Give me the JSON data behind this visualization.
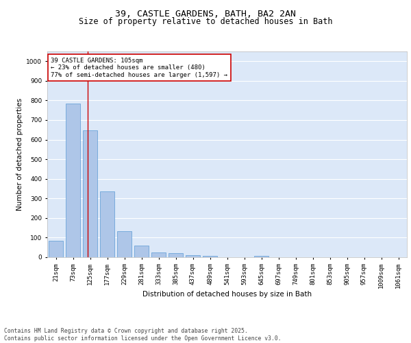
{
  "title1": "39, CASTLE GARDENS, BATH, BA2 2AN",
  "title2": "Size of property relative to detached houses in Bath",
  "xlabel": "Distribution of detached houses by size in Bath",
  "ylabel": "Number of detached properties",
  "categories": [
    "21sqm",
    "73sqm",
    "125sqm",
    "177sqm",
    "229sqm",
    "281sqm",
    "333sqm",
    "385sqm",
    "437sqm",
    "489sqm",
    "541sqm",
    "593sqm",
    "645sqm",
    "697sqm",
    "749sqm",
    "801sqm",
    "853sqm",
    "905sqm",
    "957sqm",
    "1009sqm",
    "1061sqm"
  ],
  "bar_values": [
    83,
    783,
    648,
    335,
    133,
    58,
    23,
    20,
    11,
    8,
    0,
    0,
    8,
    0,
    0,
    0,
    0,
    0,
    0,
    0,
    0
  ],
  "bar_color": "#aec6e8",
  "bar_edge_color": "#5b9bd5",
  "vline_x": 1.85,
  "vline_color": "#cc0000",
  "annotation_text": "39 CASTLE GARDENS: 105sqm\n← 23% of detached houses are smaller (480)\n77% of semi-detached houses are larger (1,597) →",
  "annotation_box_color": "#ffffff",
  "annotation_box_edge": "#cc0000",
  "ylim": [
    0,
    1050
  ],
  "yticks": [
    0,
    100,
    200,
    300,
    400,
    500,
    600,
    700,
    800,
    900,
    1000
  ],
  "bg_color": "#dce8f8",
  "grid_color": "#ffffff",
  "footer": "Contains HM Land Registry data © Crown copyright and database right 2025.\nContains public sector information licensed under the Open Government Licence v3.0.",
  "title_fontsize": 9.5,
  "subtitle_fontsize": 8.5,
  "axis_label_fontsize": 7.5,
  "tick_fontsize": 6.5,
  "annotation_fontsize": 6.5,
  "footer_fontsize": 5.8
}
